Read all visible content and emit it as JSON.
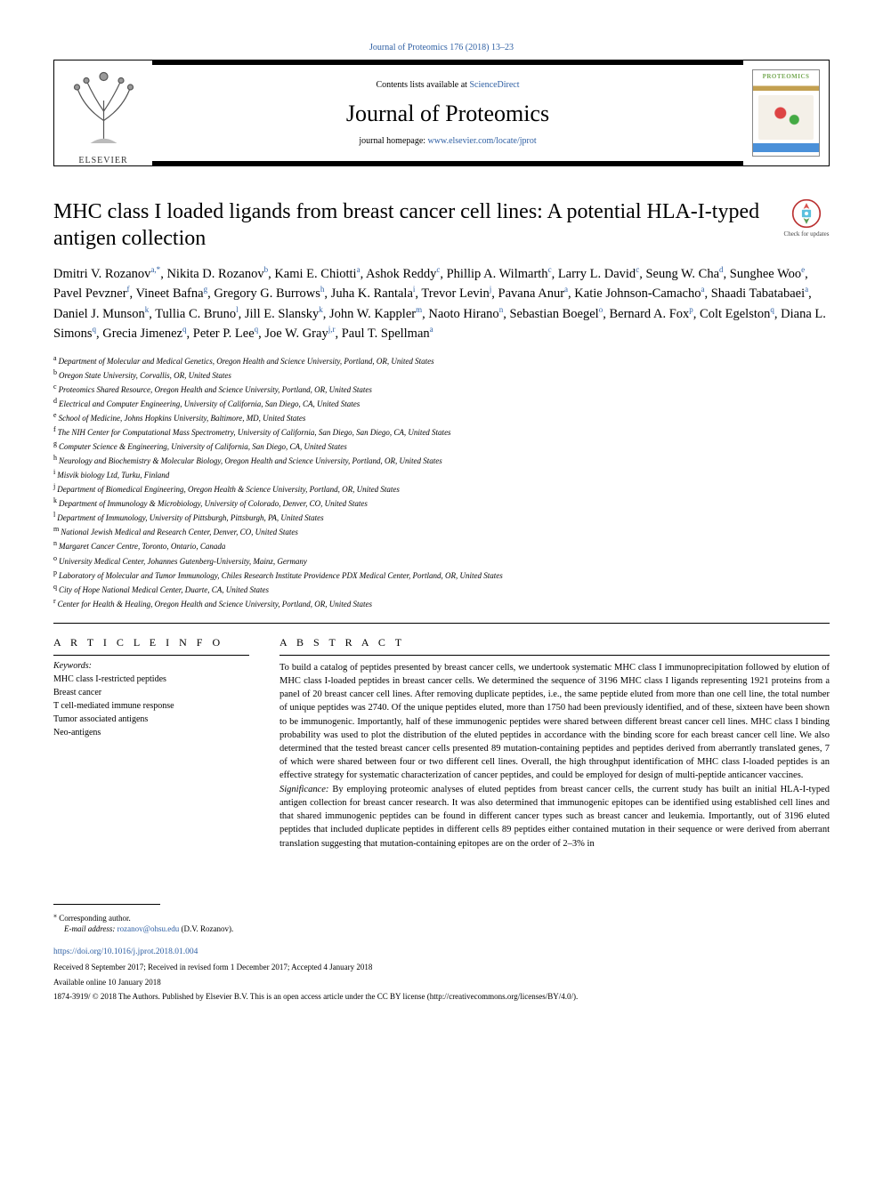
{
  "top_citation": "Journal of Proteomics 176 (2018) 13–23",
  "header": {
    "contents_text": "Contents lists available at ",
    "contents_link": "ScienceDirect",
    "journal_name": "Journal of Proteomics",
    "homepage_label": "journal homepage: ",
    "homepage_url": "www.elsevier.com/locate/jprot",
    "publisher": "ELSEVIER",
    "cover_title": "PROTEOMICS"
  },
  "check_updates_label": "Check for updates",
  "title": "MHC class I loaded ligands from breast cancer cell lines: A potential HLA-I-typed antigen collection",
  "authors_html": "Dmitri V. Rozanov<sup>a,*</sup>, Nikita D. Rozanov<sup>b</sup>, Kami E. Chiotti<sup>a</sup>, Ashok Reddy<sup>c</sup>, Phillip A. Wilmarth<sup>c</sup>, Larry L. David<sup>c</sup>, Seung W. Cha<sup>d</sup>, Sunghee Woo<sup>e</sup>, Pavel Pevzner<sup>f</sup>, Vineet Bafna<sup>g</sup>, Gregory G. Burrows<sup>h</sup>, Juha K. Rantala<sup>i</sup>, Trevor Levin<sup>j</sup>, Pavana Anur<sup>a</sup>, Katie Johnson-Camacho<sup>a</sup>, Shaadi Tabatabaei<sup>a</sup>, Daniel J. Munson<sup>k</sup>, Tullia C. Bruno<sup>l</sup>, Jill E. Slansky<sup>k</sup>, John W. Kappler<sup>m</sup>, Naoto Hirano<sup>n</sup>, Sebastian Boegel<sup>o</sup>, Bernard A. Fox<sup>p</sup>, Colt Egelston<sup>q</sup>, Diana L. Simons<sup>q</sup>, Grecia Jimenez<sup>q</sup>, Peter P. Lee<sup>q</sup>, Joe W. Gray<sup>j,r</sup>, Paul T. Spellman<sup>a</sup>",
  "affiliations": [
    {
      "k": "a",
      "t": "Department of Molecular and Medical Genetics, Oregon Health and Science University, Portland, OR, United States"
    },
    {
      "k": "b",
      "t": "Oregon State University, Corvallis, OR, United States"
    },
    {
      "k": "c",
      "t": "Proteomics Shared Resource, Oregon Health and Science University, Portland, OR, United States"
    },
    {
      "k": "d",
      "t": "Electrical and Computer Engineering, University of California, San Diego, CA, United States"
    },
    {
      "k": "e",
      "t": "School of Medicine, Johns Hopkins University, Baltimore, MD, United States"
    },
    {
      "k": "f",
      "t": "The NIH Center for Computational Mass Spectrometry, University of California, San Diego, San Diego, CA, United States"
    },
    {
      "k": "g",
      "t": "Computer Science & Engineering, University of California, San Diego, CA, United States"
    },
    {
      "k": "h",
      "t": "Neurology and Biochemistry & Molecular Biology, Oregon Health and Science University, Portland, OR, United States"
    },
    {
      "k": "i",
      "t": "Misvik biology Ltd, Turku, Finland"
    },
    {
      "k": "j",
      "t": "Department of Biomedical Engineering, Oregon Health & Science University, Portland, OR, United States"
    },
    {
      "k": "k",
      "t": "Department of Immunology & Microbiology, University of Colorado, Denver, CO, United States"
    },
    {
      "k": "l",
      "t": "Department of Immunology, University of Pittsburgh, Pittsburgh, PA, United States"
    },
    {
      "k": "m",
      "t": "National Jewish Medical and Research Center, Denver, CO, United States"
    },
    {
      "k": "n",
      "t": "Margaret Cancer Centre, Toronto, Ontario, Canada"
    },
    {
      "k": "o",
      "t": "University Medical Center, Johannes Gutenberg-University, Mainz, Germany"
    },
    {
      "k": "p",
      "t": "Laboratory of Molecular and Tumor Immunology, Chiles Research Institute Providence PDX Medical Center, Portland, OR, United States"
    },
    {
      "k": "q",
      "t": "City of Hope National Medical Center, Duarte, CA, United States"
    },
    {
      "k": "r",
      "t": "Center for Health & Healing, Oregon Health and Science University, Portland, OR, United States"
    }
  ],
  "article_info": {
    "head": "A R T I C L E  I N F O",
    "keywords_label": "Keywords:",
    "keywords": [
      "MHC class I-restricted peptides",
      "Breast cancer",
      "T cell-mediated immune response",
      "Tumor associated antigens",
      "Neo-antigens"
    ]
  },
  "abstract": {
    "head": "A B S T R A C T",
    "body": "To build a catalog of peptides presented by breast cancer cells, we undertook systematic MHC class I immunoprecipitation followed by elution of MHC class I-loaded peptides in breast cancer cells. We determined the sequence of 3196 MHC class I ligands representing 1921 proteins from a panel of 20 breast cancer cell lines. After removing duplicate peptides, i.e., the same peptide eluted from more than one cell line, the total number of unique peptides was 2740. Of the unique peptides eluted, more than 1750 had been previously identified, and of these, sixteen have been shown to be immunogenic. Importantly, half of these immunogenic peptides were shared between different breast cancer cell lines. MHC class I binding probability was used to plot the distribution of the eluted peptides in accordance with the binding score for each breast cancer cell line. We also determined that the tested breast cancer cells presented 89 mutation-containing peptides and peptides derived from aberrantly translated genes, 7 of which were shared between four or two different cell lines. Overall, the high throughput identification of MHC class I-loaded peptides is an effective strategy for systematic characterization of cancer peptides, and could be employed for design of multi-peptide anticancer vaccines.",
    "significance_label": "Significance:",
    "significance": " By employing proteomic analyses of eluted peptides from breast cancer cells, the current study has built an initial HLA-I-typed antigen collection for breast cancer research. It was also determined that immunogenic epitopes can be identified using established cell lines and that shared immunogenic peptides can be found in different cancer types such as breast cancer and leukemia. Importantly, out of 3196 eluted peptides that included duplicate peptides in different cells 89 peptides either contained mutation in their sequence or were derived from aberrant translation suggesting that mutation-containing epitopes are on the order of 2–3% in"
  },
  "footer": {
    "corr_label": "Corresponding author.",
    "email_label": "E-mail address: ",
    "email": "rozanov@ohsu.edu",
    "email_person": " (D.V. Rozanov).",
    "doi": "https://doi.org/10.1016/j.jprot.2018.01.004",
    "received": "Received 8 September 2017; Received in revised form 1 December 2017; Accepted 4 January 2018",
    "available": "Available online 10 January 2018",
    "copyright": "1874-3919/ © 2018 The Authors. Published by Elsevier B.V. This is an open access article under the CC BY license (http://creativecommons.org/licenses/BY/4.0/)."
  },
  "colors": {
    "link": "#2e5fa3",
    "border": "#000000",
    "text": "#000000"
  }
}
